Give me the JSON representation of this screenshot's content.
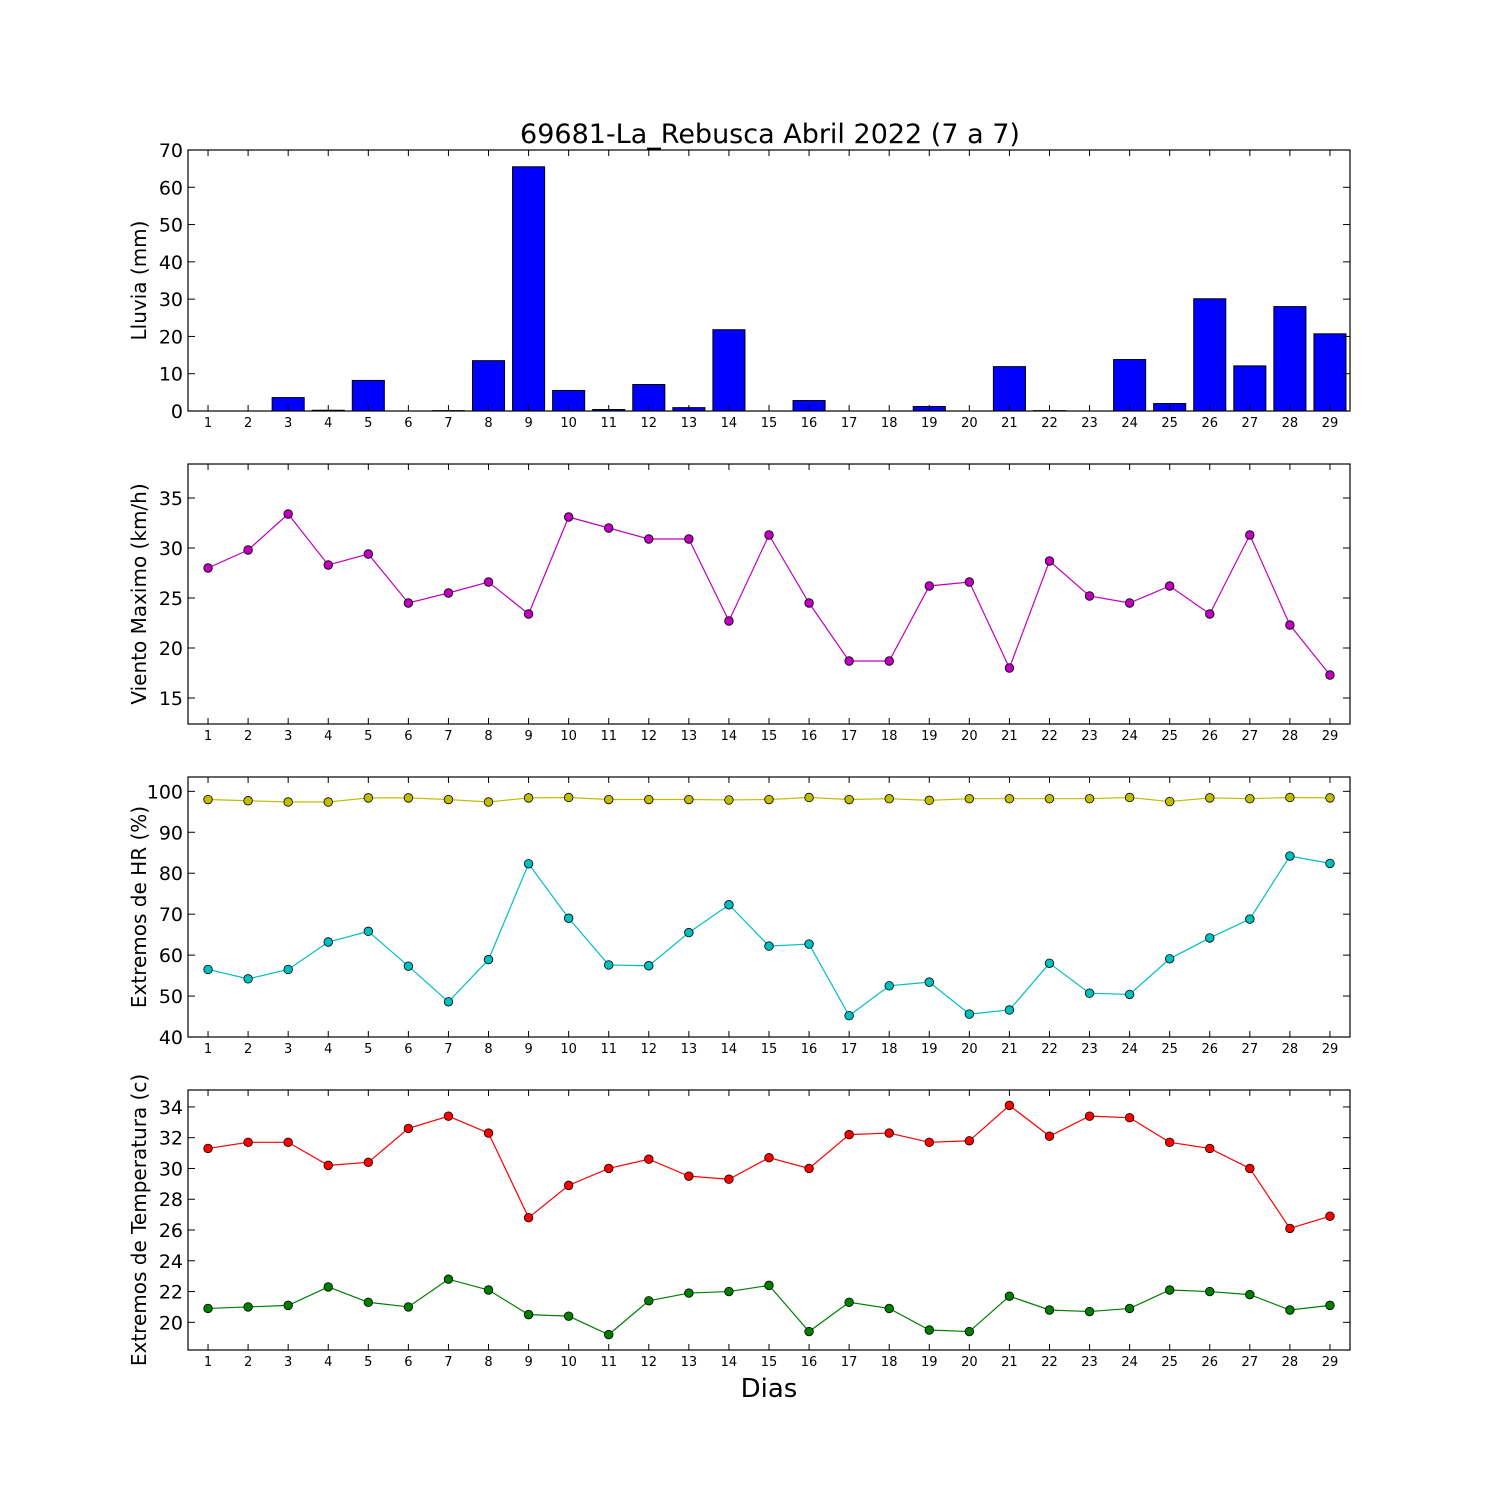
{
  "chart_data": [
    {
      "type": "bar",
      "title": "69681-La_Rebusca Abril 2022  (7 a 7)",
      "ylabel": "Lluvia (mm)",
      "xlabel": "",
      "categories": [
        "1",
        "2",
        "3",
        "4",
        "5",
        "6",
        "7",
        "8",
        "9",
        "10",
        "11",
        "12",
        "13",
        "14",
        "15",
        "16",
        "17",
        "18",
        "19",
        "20",
        "21",
        "22",
        "23",
        "24",
        "25",
        "26",
        "27",
        "28",
        "29"
      ],
      "values": [
        0,
        0,
        3.6,
        0.2,
        8.2,
        0,
        0.1,
        13.5,
        65.5,
        5.5,
        0.4,
        7.1,
        0.9,
        21.8,
        0,
        2.8,
        0,
        0,
        1.2,
        0,
        11.9,
        0.1,
        0,
        13.8,
        2.0,
        30.1,
        12.1,
        28.0,
        20.7
      ],
      "ylim": [
        0,
        70
      ],
      "yticks": [
        0,
        10,
        20,
        30,
        40,
        50,
        60,
        70
      ],
      "color": "#0000ff"
    },
    {
      "type": "line",
      "ylabel": "Viento Maximo (km/h)",
      "xlabel": "",
      "x": [
        "1",
        "2",
        "3",
        "4",
        "5",
        "6",
        "7",
        "8",
        "9",
        "10",
        "11",
        "12",
        "13",
        "14",
        "15",
        "16",
        "17",
        "18",
        "19",
        "20",
        "21",
        "22",
        "23",
        "24",
        "25",
        "26",
        "27",
        "28",
        "29"
      ],
      "series": [
        {
          "color": "#bf00bf",
          "values": [
            28.0,
            29.8,
            33.4,
            28.3,
            29.4,
            24.5,
            25.5,
            26.6,
            23.4,
            33.1,
            32.0,
            30.9,
            30.9,
            22.7,
            31.3,
            24.5,
            18.7,
            18.7,
            26.2,
            26.6,
            18.0,
            28.7,
            25.2,
            24.5,
            26.2,
            23.4,
            31.3,
            22.3,
            17.3
          ]
        }
      ],
      "ylim": [
        12.4,
        38.4
      ],
      "yticks": [
        15,
        20,
        25,
        30,
        35
      ]
    },
    {
      "type": "line",
      "ylabel": "Extremos de HR (%)",
      "xlabel": "",
      "x": [
        "1",
        "2",
        "3",
        "4",
        "5",
        "6",
        "7",
        "8",
        "9",
        "10",
        "11",
        "12",
        "13",
        "14",
        "15",
        "16",
        "17",
        "18",
        "19",
        "20",
        "21",
        "22",
        "23",
        "24",
        "25",
        "26",
        "27",
        "28",
        "29"
      ],
      "series": [
        {
          "color": "#bfbf00",
          "values": [
            98.0,
            97.7,
            97.4,
            97.4,
            98.4,
            98.4,
            98.0,
            97.4,
            98.4,
            98.5,
            98.0,
            98.0,
            98.0,
            97.9,
            98.0,
            98.5,
            98.0,
            98.2,
            97.8,
            98.2,
            98.2,
            98.2,
            98.2,
            98.5,
            97.5,
            98.4,
            98.2,
            98.5,
            98.4
          ]
        },
        {
          "color": "#00bfbf",
          "values": [
            56.5,
            54.2,
            56.5,
            63.2,
            65.8,
            57.3,
            48.6,
            58.9,
            82.3,
            69.0,
            57.6,
            57.4,
            65.5,
            72.3,
            62.2,
            62.7,
            45.2,
            52.5,
            53.4,
            45.6,
            46.6,
            58.0,
            50.7,
            50.4,
            59.1,
            64.2,
            68.8,
            84.2,
            82.4
          ]
        }
      ],
      "ylim": [
        40,
        103.5
      ],
      "yticks": [
        40,
        50,
        60,
        70,
        80,
        90,
        100
      ]
    },
    {
      "type": "line",
      "ylabel": "Extremos de Temperatura (c)",
      "xlabel": "Dias",
      "x": [
        "1",
        "2",
        "3",
        "4",
        "5",
        "6",
        "7",
        "8",
        "9",
        "10",
        "11",
        "12",
        "13",
        "14",
        "15",
        "16",
        "17",
        "18",
        "19",
        "20",
        "21",
        "22",
        "23",
        "24",
        "25",
        "26",
        "27",
        "28",
        "29"
      ],
      "series": [
        {
          "color": "#ff0000",
          "values": [
            31.3,
            31.7,
            31.7,
            30.2,
            30.4,
            32.6,
            33.4,
            32.3,
            26.8,
            28.9,
            30.0,
            30.6,
            29.5,
            29.3,
            30.7,
            30.0,
            32.2,
            32.3,
            31.7,
            31.8,
            34.1,
            32.1,
            33.4,
            33.3,
            31.7,
            31.3,
            30.0,
            26.1,
            26.9
          ]
        },
        {
          "color": "#007f00",
          "values": [
            20.9,
            21.0,
            21.1,
            22.3,
            21.3,
            21.0,
            22.8,
            22.1,
            20.5,
            20.4,
            19.2,
            21.4,
            21.9,
            22.0,
            22.4,
            19.4,
            21.3,
            20.9,
            19.5,
            19.4,
            21.7,
            20.8,
            20.7,
            20.9,
            22.1,
            22.0,
            21.8,
            20.8,
            21.1
          ]
        }
      ],
      "ylim": [
        18.2,
        35.1
      ],
      "yticks": [
        20,
        22,
        24,
        26,
        28,
        30,
        32,
        34
      ]
    }
  ]
}
